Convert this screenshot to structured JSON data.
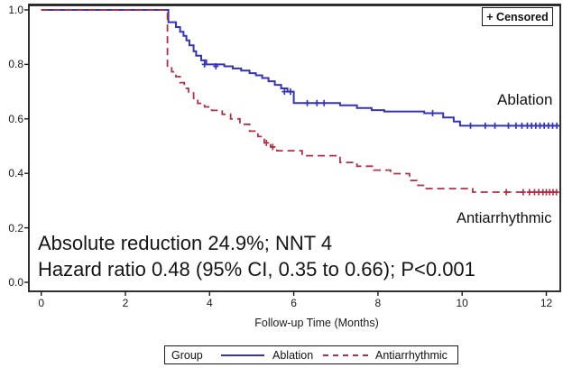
{
  "censored_box": {
    "label": "+ Censored"
  },
  "curve_labels": {
    "ablation": "Ablation",
    "antiarrhythmic": "Antiarrhythmic"
  },
  "annotations": {
    "line1": "Absolute reduction 24.9%; NNT 4",
    "line2": "Hazard ratio 0.48 (95% CI, 0.35 to 0.66); P<0.001"
  },
  "legend": {
    "title": "Group",
    "items": [
      {
        "label": "Ablation",
        "style": "solid",
        "color": "#3434b8"
      },
      {
        "label": "Antiarrhythmic",
        "style": "dashed",
        "color": "#b03045"
      }
    ]
  },
  "colors": {
    "ablation": "#3434b8",
    "antiarrhythmic": "#b03045",
    "axis": "#1a1a1a"
  },
  "chart_data": {
    "type": "line",
    "subtype": "kaplan-meier-step",
    "title": "",
    "xlabel": "Follow-up Time (Months)",
    "ylabel": "",
    "xlim": [
      0,
      12.3
    ],
    "ylim": [
      0.0,
      1.0
    ],
    "grid": false,
    "legend_position": "bottom",
    "xticks": [
      [
        0,
        "0"
      ],
      [
        2,
        "2"
      ],
      [
        4,
        "4"
      ],
      [
        6,
        "6"
      ],
      [
        8,
        "8"
      ],
      [
        10,
        "10"
      ],
      [
        12,
        "12"
      ]
    ],
    "yticks": [
      [
        0.0,
        "0.0"
      ],
      [
        0.2,
        "0.2"
      ],
      [
        0.4,
        "0.4"
      ],
      [
        0.6,
        "0.6"
      ],
      [
        0.8,
        "0.8"
      ],
      [
        1.0,
        "1.0"
      ]
    ],
    "series": [
      {
        "name": "Ablation",
        "color": "#3434b8",
        "style": "solid",
        "points": [
          [
            0,
            1.0
          ],
          [
            3.0,
            1.0
          ],
          [
            3.02,
            0.955
          ],
          [
            3.2,
            0.937
          ],
          [
            3.3,
            0.92
          ],
          [
            3.38,
            0.905
          ],
          [
            3.45,
            0.888
          ],
          [
            3.52,
            0.87
          ],
          [
            3.62,
            0.848
          ],
          [
            3.68,
            0.832
          ],
          [
            3.8,
            0.815
          ],
          [
            3.92,
            0.8
          ],
          [
            4.35,
            0.793
          ],
          [
            4.55,
            0.785
          ],
          [
            4.75,
            0.777
          ],
          [
            4.95,
            0.768
          ],
          [
            5.1,
            0.76
          ],
          [
            5.25,
            0.75
          ],
          [
            5.4,
            0.738
          ],
          [
            5.55,
            0.725
          ],
          [
            5.7,
            0.712
          ],
          [
            5.85,
            0.7
          ],
          [
            6.0,
            0.658
          ],
          [
            7.1,
            0.65
          ],
          [
            7.5,
            0.64
          ],
          [
            7.85,
            0.632
          ],
          [
            8.15,
            0.627
          ],
          [
            9.1,
            0.621
          ],
          [
            9.55,
            0.605
          ],
          [
            9.8,
            0.59
          ],
          [
            9.95,
            0.575
          ],
          [
            12.3,
            0.575
          ]
        ],
        "censored": [
          [
            3.88,
            0.8
          ],
          [
            4.15,
            0.793
          ],
          [
            5.78,
            0.7
          ],
          [
            5.92,
            0.7
          ],
          [
            6.32,
            0.658
          ],
          [
            6.55,
            0.658
          ],
          [
            6.72,
            0.658
          ],
          [
            9.3,
            0.621
          ],
          [
            10.2,
            0.575
          ],
          [
            10.55,
            0.575
          ],
          [
            10.78,
            0.575
          ],
          [
            11.1,
            0.575
          ],
          [
            11.28,
            0.575
          ],
          [
            11.42,
            0.575
          ],
          [
            11.55,
            0.575
          ],
          [
            11.65,
            0.575
          ],
          [
            11.75,
            0.575
          ],
          [
            11.85,
            0.575
          ],
          [
            11.95,
            0.575
          ],
          [
            12.05,
            0.575
          ],
          [
            12.15,
            0.575
          ],
          [
            12.25,
            0.575
          ]
        ]
      },
      {
        "name": "Antiarrhythmic",
        "color": "#b03045",
        "style": "dashed",
        "points": [
          [
            0,
            1.0
          ],
          [
            2.97,
            1.0
          ],
          [
            3.0,
            0.79
          ],
          [
            3.1,
            0.773
          ],
          [
            3.2,
            0.755
          ],
          [
            3.3,
            0.733
          ],
          [
            3.4,
            0.712
          ],
          [
            3.5,
            0.695
          ],
          [
            3.62,
            0.675
          ],
          [
            3.72,
            0.657
          ],
          [
            3.88,
            0.644
          ],
          [
            4.05,
            0.631
          ],
          [
            4.3,
            0.617
          ],
          [
            4.5,
            0.6
          ],
          [
            4.72,
            0.58
          ],
          [
            4.95,
            0.555
          ],
          [
            5.15,
            0.535
          ],
          [
            5.3,
            0.512
          ],
          [
            5.45,
            0.497
          ],
          [
            5.6,
            0.483
          ],
          [
            6.2,
            0.465
          ],
          [
            7.1,
            0.44
          ],
          [
            7.5,
            0.426
          ],
          [
            7.9,
            0.412
          ],
          [
            8.3,
            0.399
          ],
          [
            8.75,
            0.374
          ],
          [
            8.95,
            0.356
          ],
          [
            9.15,
            0.344
          ],
          [
            10.25,
            0.331
          ],
          [
            12.3,
            0.33
          ]
        ],
        "censored": [
          [
            5.35,
            0.512
          ],
          [
            5.5,
            0.497
          ],
          [
            11.05,
            0.331
          ],
          [
            11.45,
            0.331
          ],
          [
            11.6,
            0.331
          ],
          [
            11.72,
            0.331
          ],
          [
            11.82,
            0.331
          ],
          [
            11.92,
            0.331
          ],
          [
            12.0,
            0.331
          ],
          [
            12.08,
            0.331
          ],
          [
            12.16,
            0.331
          ],
          [
            12.24,
            0.331
          ]
        ]
      }
    ]
  }
}
